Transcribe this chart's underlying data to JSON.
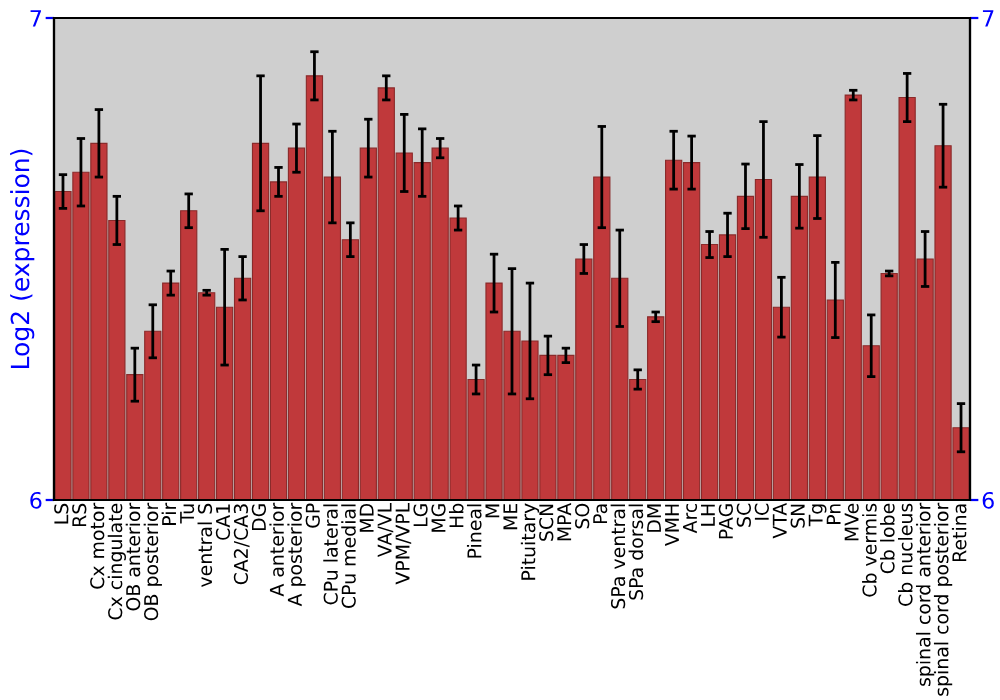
{
  "chart_data": {
    "type": "bar",
    "ylabel": "Log2 (expression)",
    "categories": [
      "LS",
      "RS",
      "Cx motor",
      "Cx cingulate",
      "OB anterior",
      "OB posterior",
      "Pir",
      "Tu",
      "ventral S",
      "CA1",
      "CA2/CA3",
      "DG",
      "A anterior",
      "A posterior",
      "GP",
      "CPu lateral",
      "CPu medial",
      "MD",
      "VA/VL",
      "VPM/VPL",
      "LG",
      "MG",
      "Hb",
      "Pineal",
      "M",
      "ME",
      "Pituitary",
      "SCN",
      "MPA",
      "SO",
      "Pa",
      "SPa ventral",
      "SPa dorsal",
      "DM",
      "VMH",
      "Arc",
      "LH",
      "PAG",
      "SC",
      "IC",
      "VTA",
      "SN",
      "Tg",
      "Pn",
      "MVe",
      "Cb vermis",
      "Cb lobe",
      "Cb nucleus",
      "spinal cord anterior",
      "spinal cord posterior",
      "Retina"
    ],
    "values": [
      6.64,
      6.68,
      6.74,
      6.58,
      6.26,
      6.35,
      6.45,
      6.6,
      6.43,
      6.4,
      6.46,
      6.74,
      6.66,
      6.73,
      6.88,
      6.67,
      6.54,
      6.73,
      6.855,
      6.72,
      6.7,
      6.73,
      6.585,
      6.25,
      6.45,
      6.35,
      6.33,
      6.3,
      6.3,
      6.5,
      6.67,
      6.46,
      6.25,
      6.38,
      6.705,
      6.7,
      6.53,
      6.55,
      6.63,
      6.665,
      6.4,
      6.63,
      6.67,
      6.415,
      6.84,
      6.32,
      6.47,
      6.835,
      6.5,
      6.735,
      6.15
    ],
    "errors": [
      0.035,
      0.07,
      0.07,
      0.05,
      0.055,
      0.055,
      0.025,
      0.035,
      0.005,
      0.12,
      0.045,
      0.14,
      0.03,
      0.05,
      0.05,
      0.095,
      0.035,
      0.06,
      0.025,
      0.08,
      0.07,
      0.02,
      0.025,
      0.03,
      0.06,
      0.13,
      0.12,
      0.04,
      0.015,
      0.03,
      0.105,
      0.1,
      0.02,
      0.01,
      0.06,
      0.055,
      0.027,
      0.045,
      0.067,
      0.12,
      0.062,
      0.066,
      0.086,
      0.078,
      0.01,
      0.064,
      0.005,
      0.05,
      0.057,
      0.086,
      0.05
    ],
    "color": "#c0393b",
    "ylim": [
      6,
      7
    ],
    "yticks": [
      6,
      7
    ],
    "y2lim": [
      6,
      7
    ],
    "y2ticks": [
      6,
      7
    ],
    "grid": false,
    "legend": false
  }
}
